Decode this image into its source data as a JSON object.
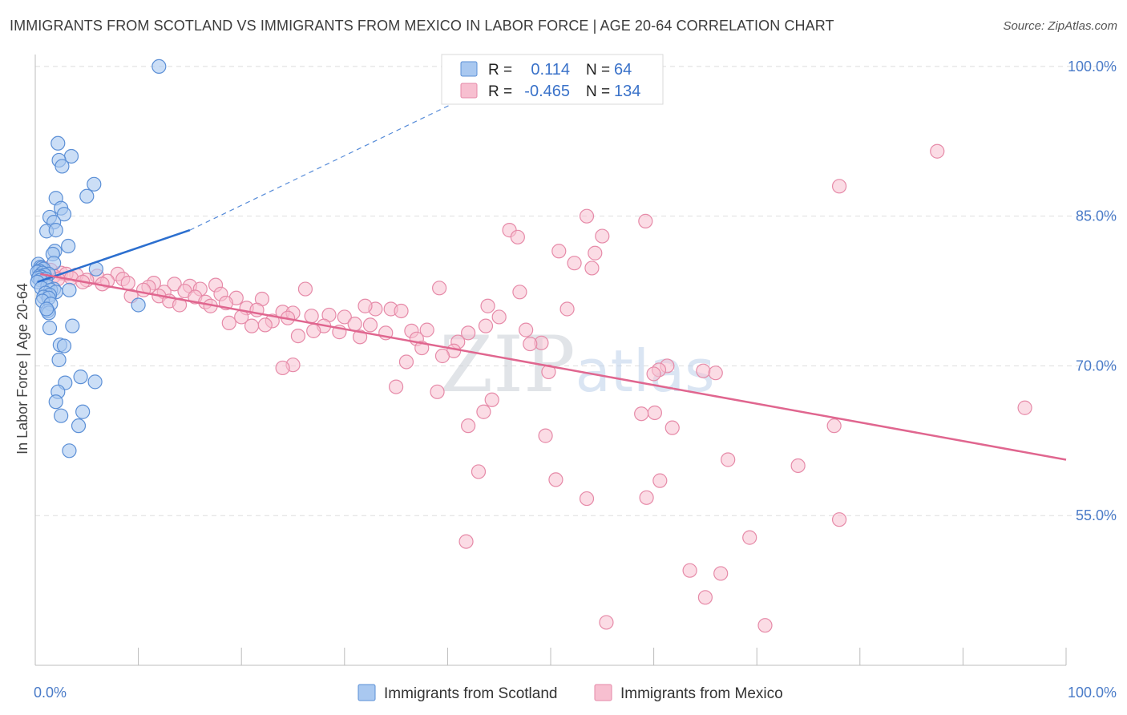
{
  "chart_data": {
    "type": "scatter",
    "title": "IMMIGRANTS FROM SCOTLAND VS IMMIGRANTS FROM MEXICO IN LABOR FORCE | AGE 20-64 CORRELATION CHART",
    "source": "Source: ZipAtlas.com",
    "watermark": "ZIPatlas",
    "ylabel": "In Labor Force | Age 20-64",
    "xlim": [
      0,
      100
    ],
    "ylim": [
      40,
      102
    ],
    "x_tick_labels": [
      {
        "value": 0,
        "label": "0.0%"
      },
      {
        "value": 100,
        "label": "100.0%"
      }
    ],
    "y_ticks": [
      {
        "value": 100,
        "label": "100.0%"
      },
      {
        "value": 85,
        "label": "85.0%"
      },
      {
        "value": 70,
        "label": "70.0%"
      },
      {
        "value": 55,
        "label": "55.0%"
      }
    ],
    "grid": true,
    "legend_position": "top-center",
    "colors": {
      "scotland_fill": "#a9c8f0",
      "scotland_stroke": "#5b8fd6",
      "scotland_line": "#2c6fcf",
      "mexico_fill": "#f7bfd0",
      "mexico_stroke": "#e68aa8",
      "mexico_line": "#e0668f",
      "value_text": "#3a72c9",
      "axis_text": "#4a7bc8",
      "grid": "#dedede"
    },
    "stats": [
      {
        "r_label": "R =",
        "r_value": "0.114",
        "n_label": "N =",
        "n_value": "64"
      },
      {
        "r_label": "R =",
        "r_value": "-0.465",
        "n_label": "N =",
        "n_value": "134"
      }
    ],
    "series": [
      {
        "name": "Immigrants from Scotland",
        "trend": {
          "x": [
            0.2,
            15
          ],
          "y": [
            78.4,
            83.6
          ],
          "dashed_extension_to": [
            48,
            100
          ]
        },
        "points": [
          [
            12.0,
            100.0
          ],
          [
            2.2,
            92.3
          ],
          [
            3.5,
            91.0
          ],
          [
            2.3,
            90.6
          ],
          [
            2.6,
            90.0
          ],
          [
            5.7,
            88.2
          ],
          [
            5.0,
            87.0
          ],
          [
            2.0,
            86.8
          ],
          [
            2.5,
            85.8
          ],
          [
            2.8,
            85.2
          ],
          [
            1.4,
            84.9
          ],
          [
            1.8,
            84.4
          ],
          [
            1.1,
            83.5
          ],
          [
            2.0,
            83.6
          ],
          [
            3.2,
            82.0
          ],
          [
            1.9,
            81.5
          ],
          [
            1.7,
            81.2
          ],
          [
            1.8,
            80.3
          ],
          [
            0.3,
            80.2
          ],
          [
            0.5,
            79.9
          ],
          [
            0.6,
            79.8
          ],
          [
            0.8,
            79.7
          ],
          [
            5.9,
            79.7
          ],
          [
            0.4,
            79.5
          ],
          [
            0.2,
            79.4
          ],
          [
            0.7,
            79.3
          ],
          [
            1.3,
            79.2
          ],
          [
            0.9,
            79.1
          ],
          [
            0.4,
            79.0
          ],
          [
            0.6,
            78.9
          ],
          [
            0.3,
            78.8
          ],
          [
            1.0,
            78.7
          ],
          [
            0.5,
            78.6
          ],
          [
            0.2,
            78.4
          ],
          [
            1.2,
            78.0
          ],
          [
            0.6,
            77.8
          ],
          [
            1.8,
            77.7
          ],
          [
            3.3,
            77.6
          ],
          [
            1.5,
            77.6
          ],
          [
            2.0,
            77.4
          ],
          [
            1.0,
            77.3
          ],
          [
            1.4,
            77.1
          ],
          [
            0.8,
            76.9
          ],
          [
            1.3,
            76.8
          ],
          [
            0.7,
            76.5
          ],
          [
            1.5,
            76.2
          ],
          [
            10.0,
            76.1
          ],
          [
            1.2,
            75.5
          ],
          [
            1.3,
            75.3
          ],
          [
            1.1,
            75.7
          ],
          [
            1.4,
            73.8
          ],
          [
            3.6,
            74.0
          ],
          [
            2.4,
            72.1
          ],
          [
            2.8,
            72.0
          ],
          [
            2.3,
            70.6
          ],
          [
            4.4,
            68.9
          ],
          [
            5.8,
            68.4
          ],
          [
            2.9,
            68.3
          ],
          [
            2.2,
            67.4
          ],
          [
            2.0,
            66.4
          ],
          [
            4.6,
            65.4
          ],
          [
            2.5,
            65.0
          ],
          [
            4.2,
            64.0
          ],
          [
            3.3,
            61.5
          ]
        ]
      },
      {
        "name": "Immigrants from Mexico",
        "trend": {
          "x": [
            0.5,
            100
          ],
          "y": [
            79.2,
            60.6
          ]
        },
        "points": [
          [
            47.7,
            100.0
          ],
          [
            87.5,
            91.5
          ],
          [
            78.0,
            88.0
          ],
          [
            53.5,
            85.0
          ],
          [
            59.2,
            84.5
          ],
          [
            46.0,
            83.6
          ],
          [
            55.0,
            83.0
          ],
          [
            46.8,
            82.9
          ],
          [
            50.8,
            81.5
          ],
          [
            54.3,
            81.3
          ],
          [
            52.3,
            80.3
          ],
          [
            54.0,
            79.8
          ],
          [
            0.8,
            79.8
          ],
          [
            1.5,
            79.6
          ],
          [
            2.5,
            79.3
          ],
          [
            4.0,
            79.1
          ],
          [
            3.0,
            79.2
          ],
          [
            6.0,
            79.0
          ],
          [
            8.0,
            79.2
          ],
          [
            1.8,
            79.0
          ],
          [
            2.2,
            78.7
          ],
          [
            3.5,
            78.8
          ],
          [
            5.0,
            78.6
          ],
          [
            7.0,
            78.5
          ],
          [
            8.5,
            78.7
          ],
          [
            6.5,
            78.2
          ],
          [
            4.6,
            78.4
          ],
          [
            9.0,
            78.3
          ],
          [
            11.5,
            78.3
          ],
          [
            13.5,
            78.2
          ],
          [
            17.5,
            78.1
          ],
          [
            11.0,
            77.9
          ],
          [
            15.0,
            78.0
          ],
          [
            10.5,
            77.6
          ],
          [
            12.5,
            77.4
          ],
          [
            14.5,
            77.5
          ],
          [
            16.0,
            77.7
          ],
          [
            26.2,
            77.7
          ],
          [
            39.2,
            77.8
          ],
          [
            47.0,
            77.4
          ],
          [
            18.0,
            77.2
          ],
          [
            9.3,
            77.0
          ],
          [
            12.0,
            77.0
          ],
          [
            15.5,
            76.9
          ],
          [
            19.5,
            76.8
          ],
          [
            22.0,
            76.7
          ],
          [
            13.0,
            76.5
          ],
          [
            16.5,
            76.4
          ],
          [
            18.5,
            76.3
          ],
          [
            14.0,
            76.1
          ],
          [
            17.0,
            76.0
          ],
          [
            20.5,
            75.8
          ],
          [
            21.5,
            75.6
          ],
          [
            24.0,
            75.4
          ],
          [
            33.0,
            75.7
          ],
          [
            32.0,
            76.0
          ],
          [
            34.5,
            75.7
          ],
          [
            35.5,
            75.5
          ],
          [
            43.9,
            76.0
          ],
          [
            51.6,
            75.7
          ],
          [
            25.0,
            75.3
          ],
          [
            26.8,
            75.0
          ],
          [
            28.5,
            75.1
          ],
          [
            30.0,
            74.9
          ],
          [
            20.0,
            74.9
          ],
          [
            23.0,
            74.5
          ],
          [
            24.5,
            74.8
          ],
          [
            22.3,
            74.1
          ],
          [
            18.8,
            74.3
          ],
          [
            21.0,
            74.0
          ],
          [
            28.0,
            74.0
          ],
          [
            31.0,
            74.2
          ],
          [
            32.5,
            74.1
          ],
          [
            45.0,
            74.9
          ],
          [
            43.7,
            74.0
          ],
          [
            27.0,
            73.5
          ],
          [
            29.5,
            73.4
          ],
          [
            34.0,
            73.3
          ],
          [
            36.5,
            73.5
          ],
          [
            38.0,
            73.6
          ],
          [
            42.0,
            73.3
          ],
          [
            47.6,
            73.6
          ],
          [
            25.5,
            73.0
          ],
          [
            31.5,
            72.9
          ],
          [
            37.0,
            72.7
          ],
          [
            41.0,
            72.4
          ],
          [
            49.1,
            72.3
          ],
          [
            48.0,
            72.2
          ],
          [
            37.5,
            71.8
          ],
          [
            40.6,
            71.5
          ],
          [
            39.5,
            71.0
          ],
          [
            36.0,
            70.4
          ],
          [
            25.0,
            70.1
          ],
          [
            24.0,
            69.8
          ],
          [
            61.3,
            70.0
          ],
          [
            60.5,
            69.6
          ],
          [
            64.8,
            69.5
          ],
          [
            60.0,
            69.2
          ],
          [
            66.0,
            69.3
          ],
          [
            49.8,
            69.4
          ],
          [
            35.0,
            67.9
          ],
          [
            39.0,
            67.4
          ],
          [
            44.3,
            66.6
          ],
          [
            43.5,
            65.4
          ],
          [
            60.1,
            65.3
          ],
          [
            58.8,
            65.2
          ],
          [
            96.0,
            65.8
          ],
          [
            42.0,
            64.0
          ],
          [
            61.8,
            63.8
          ],
          [
            77.5,
            64.0
          ],
          [
            49.5,
            63.0
          ],
          [
            67.2,
            60.6
          ],
          [
            74.0,
            60.0
          ],
          [
            43.0,
            59.4
          ],
          [
            50.5,
            58.6
          ],
          [
            60.6,
            58.5
          ],
          [
            59.3,
            56.8
          ],
          [
            53.5,
            56.7
          ],
          [
            78.0,
            54.6
          ],
          [
            69.3,
            52.8
          ],
          [
            41.8,
            52.4
          ],
          [
            63.5,
            49.5
          ],
          [
            66.5,
            49.2
          ],
          [
            65.0,
            46.8
          ],
          [
            55.4,
            44.3
          ],
          [
            70.8,
            44.0
          ]
        ]
      }
    ],
    "legend": [
      "Immigrants from Scotland",
      "Immigrants from Mexico"
    ]
  }
}
